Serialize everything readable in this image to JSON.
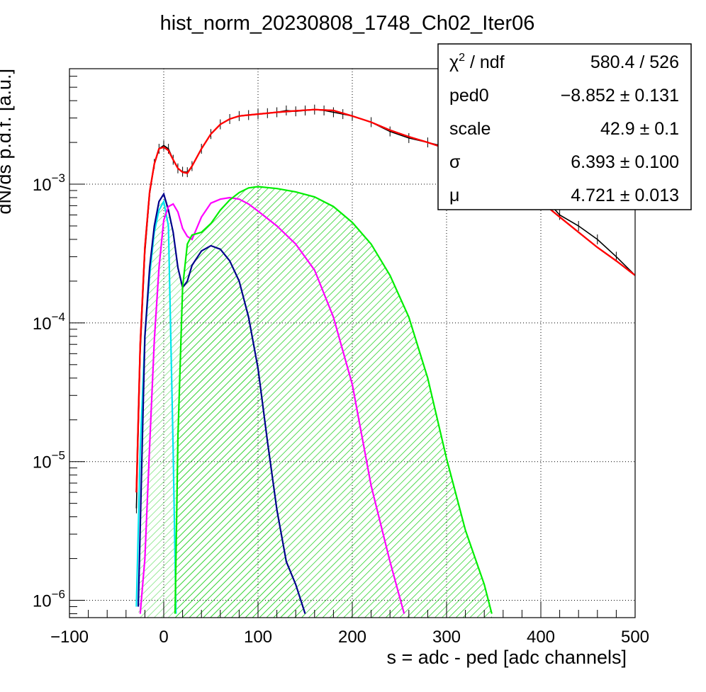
{
  "chart_data": {
    "type": "line",
    "title": "hist_norm_20230808_1748_Ch02_Iter06",
    "xlabel": "s = adc - ped [adc channels]",
    "ylabel": "dN/ds p.d.f. [a.u.]",
    "xlim": [
      -100,
      500
    ],
    "ylim": [
      7.5e-07,
      0.0068
    ],
    "y_scale": "log",
    "grid": true,
    "x_ticks": [
      {
        "value": -100,
        "label": "−100"
      },
      {
        "value": 0,
        "label": "0"
      },
      {
        "value": 100,
        "label": "100"
      },
      {
        "value": 200,
        "label": "200"
      },
      {
        "value": 300,
        "label": "300"
      },
      {
        "value": 400,
        "label": "400"
      },
      {
        "value": 500,
        "label": "500"
      }
    ],
    "y_ticks": [
      {
        "value": 1e-06,
        "base": "10",
        "exp": "−6"
      },
      {
        "value": 1e-05,
        "base": "10",
        "exp": "−5"
      },
      {
        "value": 0.0001,
        "base": "10",
        "exp": "−4"
      },
      {
        "value": 0.001,
        "base": "10",
        "exp": "−3"
      }
    ],
    "series": [
      {
        "kind": "data",
        "color": "#000000",
        "x": [
          -29,
          -25,
          -20,
          -15,
          -10,
          -5,
          0,
          5,
          10,
          15,
          20,
          25,
          30,
          40,
          50,
          60,
          70,
          80,
          90,
          100,
          110,
          120,
          130,
          140,
          150,
          160,
          170,
          180,
          190,
          200,
          220,
          240,
          260,
          280,
          300,
          320,
          340,
          360,
          380,
          400,
          420,
          440,
          460,
          480,
          500
        ],
        "values": [
          4.6e-06,
          6e-05,
          0.00032,
          0.00085,
          0.0014,
          0.0018,
          0.0019,
          0.0018,
          0.0015,
          0.0013,
          0.00123,
          0.00122,
          0.00135,
          0.0018,
          0.0023,
          0.0027,
          0.00295,
          0.0031,
          0.00315,
          0.0032,
          0.00325,
          0.0033,
          0.0034,
          0.00335,
          0.0034,
          0.00345,
          0.0034,
          0.0033,
          0.0032,
          0.0031,
          0.0028,
          0.0024,
          0.00215,
          0.002,
          0.00185,
          0.00165,
          0.00145,
          0.00125,
          0.00105,
          0.00085,
          0.0006,
          0.0005,
          0.0004,
          0.0003,
          0.00022
        ]
      },
      {
        "kind": "fit-total",
        "color": "#ff0000",
        "x": [
          -29,
          -25,
          -20,
          -15,
          -10,
          -5,
          0,
          5,
          10,
          15,
          20,
          25,
          30,
          40,
          50,
          60,
          70,
          80,
          90,
          100,
          120,
          140,
          160,
          180,
          200,
          220,
          240,
          260,
          280,
          300,
          320,
          340,
          360,
          380,
          400,
          420,
          440,
          460,
          480,
          500
        ],
        "values": [
          6e-06,
          7e-05,
          0.00035,
          0.00088,
          0.0014,
          0.0018,
          0.00185,
          0.00175,
          0.0015,
          0.0013,
          0.00122,
          0.0012,
          0.00135,
          0.0018,
          0.0023,
          0.0027,
          0.00295,
          0.0031,
          0.00315,
          0.0032,
          0.0033,
          0.00338,
          0.00345,
          0.0034,
          0.0031,
          0.0028,
          0.00245,
          0.0022,
          0.002,
          0.0018,
          0.00158,
          0.00135,
          0.00112,
          0.00092,
          0.00075,
          0.00058,
          0.00045,
          0.00035,
          0.00028,
          0.00022
        ]
      },
      {
        "kind": "component-0",
        "color": "#00e5ee",
        "x": [
          -29,
          -25,
          -20,
          -15,
          -10,
          -5,
          0,
          5,
          10,
          13
        ],
        "values": [
          9e-07,
          1.2e-05,
          8e-05,
          0.00022,
          0.00045,
          0.00065,
          0.00075,
          0.0005,
          1.2e-05,
          8e-07
        ]
      },
      {
        "kind": "component-1",
        "color": "#00008b",
        "x": [
          -27,
          -20,
          -15,
          -10,
          -5,
          0,
          5,
          10,
          15,
          20,
          25,
          30,
          40,
          50,
          60,
          70,
          80,
          90,
          100,
          110,
          120,
          130,
          140,
          150
        ],
        "values": [
          9e-07,
          8e-05,
          0.00025,
          0.0005,
          0.00075,
          0.00085,
          0.00065,
          0.00045,
          0.00025,
          0.00018,
          0.0002,
          0.00026,
          0.00033,
          0.00036,
          0.00034,
          0.00028,
          0.0002,
          0.00011,
          4.7e-05,
          1.4e-05,
          4.5e-06,
          1.9e-06,
          1.3e-06,
          8e-07
        ]
      },
      {
        "kind": "component-2",
        "color": "#ff00ff",
        "x": [
          -25,
          -20,
          -15,
          -10,
          -5,
          0,
          5,
          10,
          15,
          20,
          25,
          30,
          40,
          50,
          60,
          70,
          80,
          90,
          100,
          120,
          140,
          160,
          180,
          200,
          220,
          240,
          255
        ],
        "values": [
          8e-07,
          2e-06,
          1.3e-05,
          7.5e-05,
          0.00025,
          0.00055,
          0.00069,
          0.00072,
          0.00063,
          0.00048,
          0.00042,
          0.0004,
          0.00058,
          0.00073,
          0.00078,
          0.0008,
          0.00078,
          0.00072,
          0.00064,
          0.0005,
          0.00037,
          0.00024,
          0.00011,
          3.6e-05,
          6.7e-06,
          1.9e-06,
          8e-07
        ]
      },
      {
        "kind": "component-3",
        "color": "#00ee00",
        "hatched": true,
        "x": [
          12,
          15,
          20,
          25,
          30,
          40,
          50,
          60,
          70,
          80,
          90,
          100,
          120,
          140,
          160,
          180,
          200,
          220,
          240,
          260,
          280,
          300,
          320,
          340,
          348
        ],
        "values": [
          8e-07,
          1.5e-05,
          0.00018,
          0.00037,
          0.00043,
          0.00045,
          0.00052,
          0.00065,
          0.00077,
          0.00087,
          0.00094,
          0.00096,
          0.00093,
          0.00088,
          0.00081,
          0.00069,
          0.00053,
          0.00037,
          0.00022,
          0.00011,
          4e-05,
          1.05e-05,
          3.2e-06,
          1.3e-06,
          8e-07
        ]
      }
    ],
    "legend": {
      "placement": "top-right",
      "rows": [
        {
          "name_html": "χ<sup>2</sup> / ndf",
          "name": "χ",
          "sup": "2",
          "name_tail": " / ndf",
          "value": "580.4 / 526"
        },
        {
          "name": "ped0",
          "value": "−8.852 ± 0.131"
        },
        {
          "name": "scale",
          "value": "42.9 ± 0.1"
        },
        {
          "name": "σ",
          "value": "6.393 ± 0.100"
        },
        {
          "name": "μ",
          "value": "4.721 ± 0.013"
        }
      ]
    }
  }
}
